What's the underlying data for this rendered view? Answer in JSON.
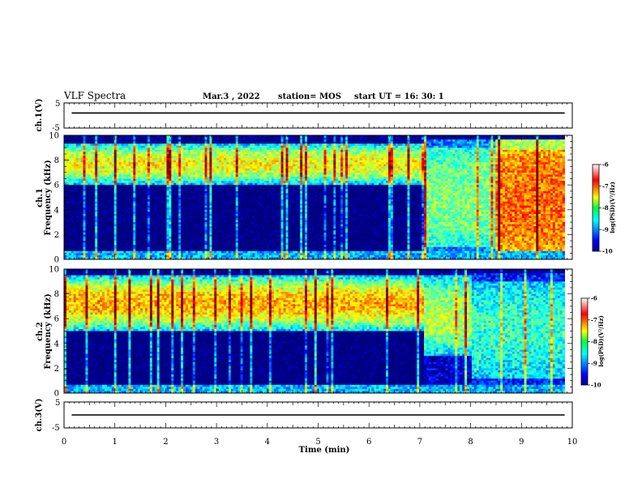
{
  "header": {
    "title": "VLF Spectra",
    "date": "Mar.3 , 2022",
    "station": "station= MOS",
    "start_time": "start UT = 16: 30: 1"
  },
  "chart_data": [
    {
      "type": "line",
      "ylabel": "ch.1(V)",
      "xlim": [
        0,
        10
      ],
      "ylim": [
        -5,
        5
      ],
      "yticks": [
        "5",
        "-5"
      ],
      "series": [
        {
          "values": [
            1,
            1
          ]
        }
      ]
    },
    {
      "type": "heatmap",
      "ylabel": "ch.1\nFrequency (kHz)",
      "xlim": [
        0,
        10
      ],
      "ylim": [
        0,
        10
      ],
      "yticks": [
        "0",
        "2",
        "4",
        "6",
        "8",
        "10"
      ],
      "data_extent_min": 9.85,
      "colorbar": {
        "label": "log(PSD)(V²/Hz)",
        "ticks": [
          "-6",
          "-7",
          "-8",
          "-9",
          "-10"
        ],
        "range": [
          -10,
          -6
        ]
      },
      "regimes": [
        {
          "from": 0,
          "to": 7.1,
          "band_khz": [
            6,
            9.4
          ],
          "peak": -7.5,
          "background": -9.8
        },
        {
          "from": 7.1,
          "to": 8.5,
          "band_khz": [
            1,
            9.0
          ],
          "peak": -8.0,
          "background": -8.6
        },
        {
          "from": 8.5,
          "to": 9.85,
          "band_khz": [
            0.5,
            8.8
          ],
          "peak": -6.9,
          "background": -7.4
        }
      ]
    },
    {
      "type": "heatmap",
      "ylabel": "ch.2\nFrequency (kHz)",
      "xlim": [
        0,
        10
      ],
      "ylim": [
        0,
        10
      ],
      "yticks": [
        "0",
        "2",
        "4",
        "6",
        "8",
        "10"
      ],
      "data_extent_min": 9.85,
      "colorbar": {
        "label": "log(PSD)(V²/Hz)",
        "ticks": [
          "-6",
          "-7",
          "-8",
          "-9",
          "-10"
        ],
        "range": [
          -10,
          -6
        ]
      },
      "regimes": [
        {
          "from": 0,
          "to": 7.1,
          "band_khz": [
            5,
            9.5
          ],
          "peak": -7.2,
          "background": -9.8
        },
        {
          "from": 7.1,
          "to": 8.0,
          "band_khz": [
            3,
            9.5
          ],
          "peak": -7.8,
          "background": -9.3
        },
        {
          "from": 8.0,
          "to": 9.85,
          "band_khz": [
            1.2,
            9.0
          ],
          "peak": -8.3,
          "background": -9.0
        }
      ]
    },
    {
      "type": "line",
      "ylabel": "ch.3(V)",
      "xlim": [
        0,
        10
      ],
      "ylim": [
        -5,
        5
      ],
      "yticks": [
        "5",
        "-5"
      ],
      "series": [
        {
          "values": [
            0,
            0
          ]
        }
      ]
    }
  ],
  "xaxis": {
    "label": "Time (min)",
    "ticks": [
      "0",
      "1",
      "2",
      "3",
      "4",
      "5",
      "6",
      "7",
      "8",
      "9",
      "10"
    ]
  }
}
